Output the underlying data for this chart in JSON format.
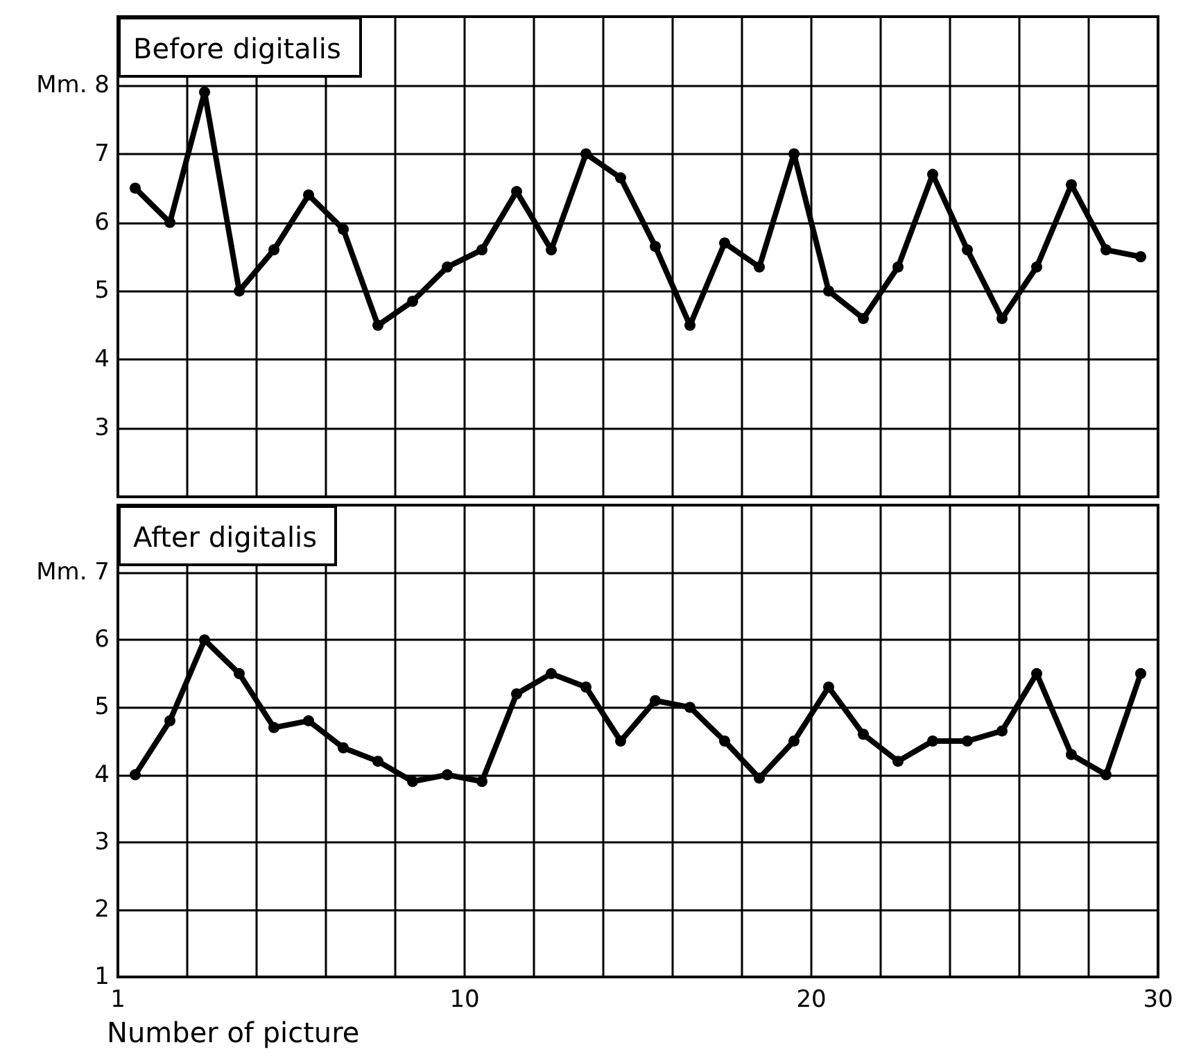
{
  "chart_data": [
    {
      "type": "line",
      "title": "Before digitalis",
      "x": [
        1,
        2,
        3,
        4,
        5,
        6,
        7,
        8,
        9,
        10,
        11,
        12,
        13,
        14,
        15,
        16,
        17,
        18,
        19,
        20,
        21,
        22,
        23,
        24,
        25,
        26,
        27,
        28,
        29,
        30
      ],
      "values": [
        6.5,
        6.0,
        7.9,
        5.0,
        5.6,
        6.4,
        5.9,
        4.5,
        4.85,
        5.35,
        5.6,
        6.45,
        5.6,
        7.0,
        6.65,
        5.65,
        4.5,
        5.7,
        5.35,
        7.0,
        5.0,
        4.6,
        5.35,
        6.7,
        5.6,
        4.6,
        5.35,
        6.55,
        5.6,
        5.5
      ],
      "color": "#000000",
      "marker": "circle",
      "line_style": "solid",
      "grid": true,
      "tick_labels": "y",
      "xlim": [
        0.5,
        30.5
      ],
      "xticks": [
        {
          "value": 0.5,
          "label": null
        },
        {
          "value": 2.5,
          "label": null
        },
        {
          "value": 4.5,
          "label": null
        },
        {
          "value": 6.5,
          "label": null
        },
        {
          "value": 8.5,
          "label": null
        },
        {
          "value": 10.5,
          "label": null
        },
        {
          "value": 12.5,
          "label": null
        },
        {
          "value": 14.5,
          "label": null
        },
        {
          "value": 16.5,
          "label": null
        },
        {
          "value": 18.5,
          "label": null
        },
        {
          "value": 20.5,
          "label": null
        },
        {
          "value": 22.5,
          "label": null
        },
        {
          "value": 24.5,
          "label": null
        },
        {
          "value": 26.5,
          "label": null
        },
        {
          "value": 28.5,
          "label": null
        },
        {
          "value": 30.5,
          "label": null
        }
      ],
      "ylim": [
        2,
        9
      ],
      "yticks": [
        {
          "value": 2,
          "label": null
        },
        3,
        4,
        5,
        6,
        7,
        {
          "value": 8,
          "label": "Mm. 8"
        },
        {
          "value": 9,
          "label": null
        }
      ]
    },
    {
      "type": "line",
      "title": "After digitalis",
      "xlabel": "Number of picture",
      "x": [
        1,
        2,
        3,
        4,
        5,
        6,
        7,
        8,
        9,
        10,
        11,
        12,
        13,
        14,
        15,
        16,
        17,
        18,
        19,
        20,
        21,
        22,
        23,
        24,
        25,
        26,
        27,
        28,
        29,
        30
      ],
      "values": [
        4.0,
        4.8,
        6.0,
        5.5,
        4.7,
        4.8,
        4.4,
        4.2,
        3.9,
        4.0,
        3.9,
        5.2,
        5.5,
        5.3,
        4.5,
        5.1,
        5.0,
        4.5,
        3.95,
        4.5,
        5.3,
        4.6,
        4.2,
        4.5,
        4.5,
        4.65,
        5.5,
        4.3,
        4.0,
        5.5
      ],
      "color": "#000000",
      "marker": "circle",
      "line_style": "solid",
      "grid": true,
      "xlim": [
        0.5,
        30.5
      ],
      "xticks": [
        {
          "value": 0.5,
          "label": "1"
        },
        {
          "value": 2.5,
          "label": null
        },
        {
          "value": 4.5,
          "label": null
        },
        {
          "value": 6.5,
          "label": null
        },
        {
          "value": 8.5,
          "label": null
        },
        {
          "value": 10.5,
          "label": "10"
        },
        {
          "value": 12.5,
          "label": null
        },
        {
          "value": 14.5,
          "label": null
        },
        {
          "value": 16.5,
          "label": null
        },
        {
          "value": 18.5,
          "label": null
        },
        {
          "value": 20.5,
          "label": "20"
        },
        {
          "value": 22.5,
          "label": null
        },
        {
          "value": 24.5,
          "label": null
        },
        {
          "value": 26.5,
          "label": null
        },
        {
          "value": 28.5,
          "label": null
        },
        {
          "value": 30.5,
          "label": "30"
        }
      ],
      "ylim": [
        1,
        8
      ],
      "yticks": [
        1,
        2,
        3,
        4,
        5,
        6,
        {
          "value": 7,
          "label": "Mm. 7"
        },
        {
          "value": 8,
          "label": null
        }
      ]
    }
  ]
}
